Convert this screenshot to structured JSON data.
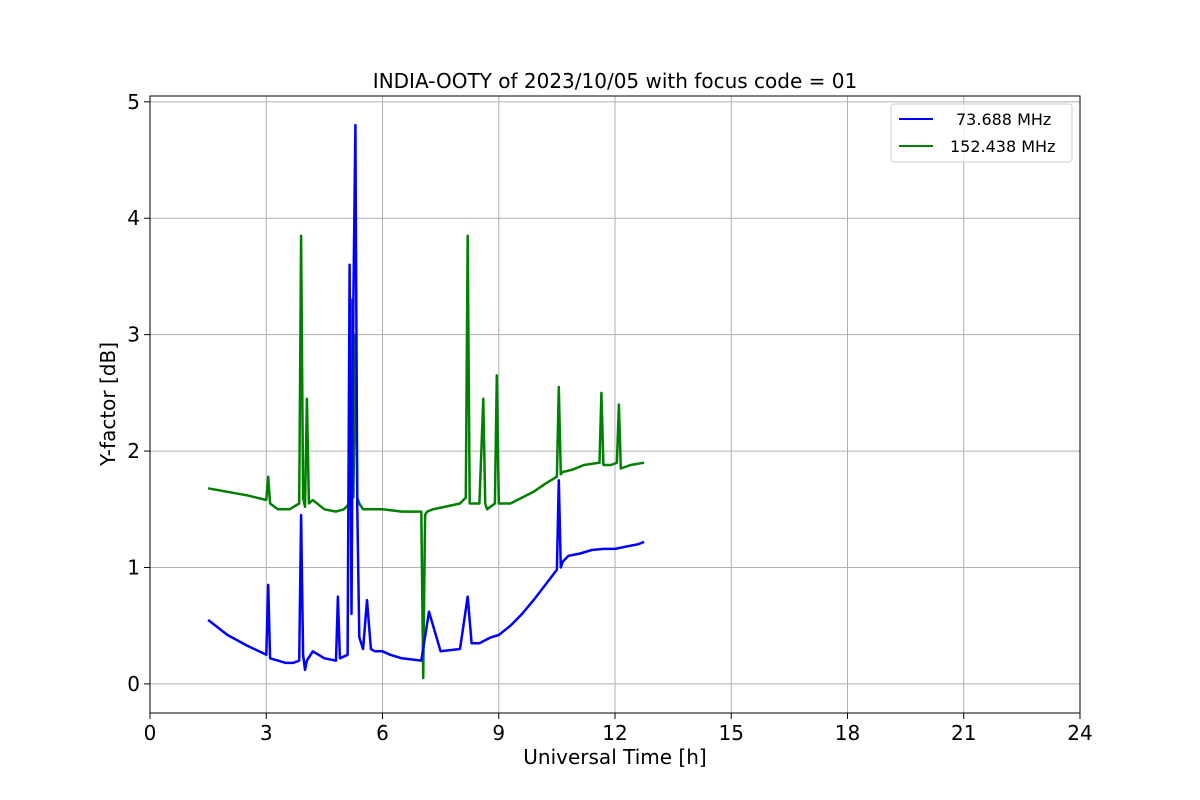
{
  "chart_data": {
    "type": "line",
    "title": "INDIA-OOTY of 2023/10/05 with focus code = 01",
    "xlabel": "Universal Time [h]",
    "ylabel": "Y-factor [dB]",
    "xlim": [
      0,
      24
    ],
    "ylim": [
      -0.25,
      5.05
    ],
    "xticks": [
      0,
      3,
      6,
      9,
      12,
      15,
      18,
      21,
      24
    ],
    "yticks": [
      0,
      1,
      2,
      3,
      4,
      5
    ],
    "grid": true,
    "legend_position": "top-right",
    "series": [
      {
        "name": "73.688 MHz",
        "color": "#0000ff",
        "x": [
          1.5,
          2.0,
          2.5,
          3.0,
          3.05,
          3.1,
          3.3,
          3.5,
          3.7,
          3.85,
          3.9,
          3.95,
          4.0,
          4.05,
          4.2,
          4.5,
          4.8,
          4.85,
          4.9,
          5.1,
          5.15,
          5.2,
          5.25,
          5.3,
          5.35,
          5.4,
          5.5,
          5.6,
          5.7,
          5.8,
          6.0,
          6.2,
          6.5,
          7.0,
          7.2,
          7.5,
          8.0,
          8.2,
          8.3,
          8.5,
          8.8,
          9.0,
          9.3,
          9.6,
          9.9,
          10.2,
          10.5,
          10.55,
          10.6,
          10.65,
          10.8,
          11.1,
          11.4,
          11.7,
          12.0,
          12.3,
          12.6,
          12.75
        ],
        "values": [
          0.55,
          0.42,
          0.33,
          0.25,
          0.85,
          0.22,
          0.2,
          0.18,
          0.18,
          0.2,
          1.45,
          0.25,
          0.12,
          0.2,
          0.28,
          0.22,
          0.2,
          0.75,
          0.22,
          0.25,
          3.6,
          0.6,
          3.3,
          4.8,
          1.5,
          0.4,
          0.3,
          0.72,
          0.3,
          0.28,
          0.28,
          0.25,
          0.22,
          0.2,
          0.62,
          0.28,
          0.3,
          0.75,
          0.35,
          0.35,
          0.4,
          0.42,
          0.5,
          0.6,
          0.72,
          0.85,
          0.98,
          1.75,
          1.0,
          1.05,
          1.1,
          1.12,
          1.15,
          1.16,
          1.16,
          1.18,
          1.2,
          1.22
        ]
      },
      {
        "name": "152.438 MHz",
        "color": "#008000",
        "x": [
          1.5,
          2.0,
          2.5,
          3.0,
          3.05,
          3.1,
          3.3,
          3.6,
          3.85,
          3.9,
          3.95,
          4.0,
          4.05,
          4.1,
          4.2,
          4.5,
          4.8,
          5.0,
          5.15,
          5.2,
          5.25,
          5.3,
          5.35,
          5.4,
          5.5,
          6.0,
          6.5,
          7.0,
          7.05,
          7.1,
          7.15,
          7.3,
          7.6,
          8.0,
          8.15,
          8.2,
          8.25,
          8.5,
          8.6,
          8.65,
          8.7,
          8.9,
          8.95,
          9.0,
          9.3,
          9.6,
          9.9,
          10.2,
          10.5,
          10.55,
          10.6,
          10.65,
          10.9,
          11.2,
          11.6,
          11.65,
          11.7,
          11.9,
          12.05,
          12.1,
          12.15,
          12.4,
          12.75
        ],
        "values": [
          1.68,
          1.65,
          1.62,
          1.58,
          1.78,
          1.55,
          1.5,
          1.5,
          1.55,
          3.85,
          1.6,
          1.52,
          2.45,
          1.55,
          1.58,
          1.5,
          1.48,
          1.5,
          1.55,
          3.3,
          1.6,
          3.0,
          1.6,
          1.55,
          1.5,
          1.5,
          1.48,
          1.48,
          0.05,
          1.45,
          1.48,
          1.5,
          1.52,
          1.55,
          1.6,
          3.85,
          1.55,
          1.55,
          2.45,
          1.55,
          1.5,
          1.55,
          2.65,
          1.55,
          1.55,
          1.6,
          1.65,
          1.72,
          1.78,
          2.55,
          1.8,
          1.82,
          1.84,
          1.88,
          1.9,
          2.5,
          1.88,
          1.88,
          1.9,
          2.4,
          1.85,
          1.88,
          1.9
        ]
      }
    ]
  }
}
